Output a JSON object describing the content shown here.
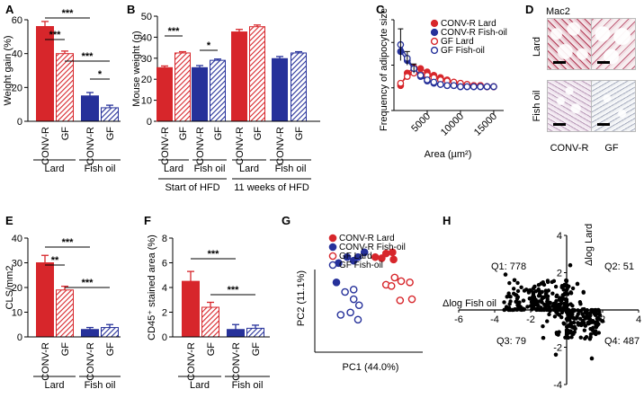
{
  "colors": {
    "red": "#d7262b",
    "blue": "#26319a",
    "black": "#000000"
  },
  "legend_lines": {
    "p2": [
      "CONV-R Lard",
      "CONV-R Fish-oil",
      "GF Lard",
      "GF Fish-oil"
    ]
  },
  "chart_data": [
    {
      "panel": "A",
      "type": "bar",
      "ylabel": "Weight gain (%)",
      "ylim": [
        0,
        60
      ],
      "yticks": [
        0,
        20,
        40,
        60
      ],
      "categories": [
        "CONV-R",
        "GF",
        "CONV-R",
        "GF"
      ],
      "groups": [
        "Lard",
        "Fish oil"
      ],
      "values": [
        56,
        40,
        15,
        8
      ],
      "errors": [
        3,
        1.5,
        2,
        1.5
      ],
      "significance": [
        "***",
        "***",
        "***",
        "*"
      ]
    },
    {
      "panel": "B",
      "type": "bar",
      "ylabel": "Mouse weight (g)",
      "ylim": [
        0,
        50
      ],
      "yticks": [
        0,
        10,
        20,
        30,
        40,
        50
      ],
      "categories": [
        "CONV-R",
        "GF",
        "CONV-R",
        "GF",
        "CONV-R",
        "GF",
        "CONV-R",
        "GF"
      ],
      "groups": [
        "Lard",
        "Fish oil",
        "Lard",
        "Fish oil"
      ],
      "timepoints": [
        "Start of HFD",
        "11 weeks of HFD"
      ],
      "values": [
        25.5,
        32.5,
        25.5,
        29,
        42.5,
        45,
        29.8,
        32.5
      ],
      "errors": [
        0.8,
        0.6,
        1,
        0.6,
        1.2,
        0.8,
        1,
        0.6
      ],
      "significance": [
        "***",
        "*"
      ]
    },
    {
      "panel": "C",
      "type": "line",
      "xlabel": "Area (µm²)",
      "ylabel": "Frequency of adipocyte size",
      "xticks": [
        5000,
        10000,
        15000
      ],
      "xlim": [
        0,
        16500
      ],
      "ylim": [
        0,
        0.8
      ],
      "yticks": [
        0,
        0.2,
        0.4,
        0.6,
        0.8
      ],
      "series": [
        {
          "name": "CONV-R Lard",
          "x": [
            1000,
            2000,
            3000,
            4000,
            5000,
            6000,
            7000,
            8000,
            9000,
            10000,
            11000,
            12000,
            13000,
            14000,
            15000
          ],
          "y": [
            0.22,
            0.33,
            0.38,
            0.37,
            0.34,
            0.31,
            0.29,
            0.27,
            0.25,
            0.24,
            0.23,
            0.22,
            0.22,
            0.21,
            0.21
          ]
        },
        {
          "name": "CONV-R Fish-oil",
          "x": [
            1000,
            2000,
            3000,
            4000,
            5000,
            6000,
            7000,
            8000,
            9000,
            10000,
            11000,
            12000,
            13000,
            14000,
            15000
          ],
          "y": [
            0.52,
            0.44,
            0.36,
            0.3,
            0.26,
            0.24,
            0.23,
            0.22,
            0.22,
            0.21,
            0.21,
            0.21,
            0.21,
            0.21,
            0.21
          ]
        },
        {
          "name": "GF Lard",
          "x": [
            1000,
            2000,
            3000,
            4000,
            5000,
            6000,
            7000,
            8000,
            9000,
            10000,
            11000,
            12000,
            13000,
            14000,
            15000
          ],
          "y": [
            0.24,
            0.3,
            0.33,
            0.32,
            0.31,
            0.29,
            0.27,
            0.26,
            0.25,
            0.24,
            0.23,
            0.22,
            0.22,
            0.21,
            0.21
          ]
        },
        {
          "name": "GF Fish-oil",
          "x": [
            1000,
            2000,
            3000,
            4000,
            5000,
            6000,
            7000,
            8000,
            9000,
            10000,
            11000,
            12000,
            13000,
            14000,
            15000
          ],
          "y": [
            0.58,
            0.46,
            0.37,
            0.31,
            0.27,
            0.25,
            0.23,
            0.22,
            0.22,
            0.21,
            0.21,
            0.21,
            0.21,
            0.21,
            0.21
          ]
        }
      ]
    },
    {
      "panel": "D",
      "type": "image_grid",
      "title": "Mac2",
      "rows": [
        "Lard",
        "Fish oil"
      ],
      "columns": [
        "CONV-R",
        "GF"
      ]
    },
    {
      "panel": "E",
      "type": "bar",
      "ylabel": "CLS/mm2",
      "ylim": [
        0,
        40
      ],
      "yticks": [
        0,
        10,
        20,
        30,
        40
      ],
      "categories": [
        "CONV-R",
        "GF",
        "CONV-R",
        "GF"
      ],
      "groups": [
        "Lard",
        "Fish oil"
      ],
      "values": [
        30,
        19,
        3,
        3.8
      ],
      "errors": [
        3,
        1.5,
        0.8,
        1.2
      ],
      "significance": [
        "***",
        "**",
        "***"
      ]
    },
    {
      "panel": "F",
      "type": "bar",
      "ylabel": "CD45⁺ stained area (%)",
      "ylim": [
        0,
        8
      ],
      "yticks": [
        0,
        2,
        4,
        6,
        8
      ],
      "categories": [
        "CONV-R",
        "GF",
        "CONV-R",
        "GF"
      ],
      "groups": [
        "Lard",
        "Fish oil"
      ],
      "values": [
        4.5,
        2.4,
        0.6,
        0.7
      ],
      "errors": [
        0.8,
        0.4,
        0.4,
        0.25
      ],
      "significance": [
        "***",
        "***"
      ]
    },
    {
      "panel": "G",
      "type": "scatter",
      "xlabel": "PC1 (44.0%)",
      "ylabel": "PC2 (11.1%)",
      "series": [
        {
          "name": "CONV-R Lard",
          "x": [
            0.62,
            0.66,
            0.72,
            0.73,
            0.56
          ],
          "y": [
            0.78,
            0.82,
            0.83,
            0.77,
            0.79
          ]
        },
        {
          "name": "CONV-R Fish-oil",
          "x": [
            0.22,
            0.3,
            0.36,
            0.4,
            0.46,
            0.2
          ],
          "y": [
            0.74,
            0.79,
            0.76,
            0.79,
            0.83,
            0.58
          ]
        },
        {
          "name": "GF Lard",
          "x": [
            0.66,
            0.74,
            0.8,
            0.88,
            0.9,
            0.79,
            0.71
          ],
          "y": [
            0.56,
            0.62,
            0.59,
            0.58,
            0.44,
            0.43,
            0.55
          ]
        },
        {
          "name": "GF Fish-oil",
          "x": [
            0.28,
            0.36,
            0.41,
            0.33,
            0.24,
            0.4,
            0.36
          ],
          "y": [
            0.5,
            0.52,
            0.39,
            0.33,
            0.31,
            0.27,
            0.44
          ]
        }
      ]
    },
    {
      "panel": "H",
      "type": "scatter",
      "xlabel": "Δlog Fish oil",
      "ylabel": "Δlog Lard",
      "xlim": [
        -6,
        4
      ],
      "ylim": [
        -4,
        4
      ],
      "xticks": [
        -6,
        -4,
        -2,
        2,
        4
      ],
      "yticks": [
        -4,
        -2,
        2,
        4
      ],
      "quadrants": [
        {
          "label": "Q1: 778"
        },
        {
          "label": "Q2: 51"
        },
        {
          "label": "Q3: 79"
        },
        {
          "label": "Q4: 487"
        }
      ]
    }
  ]
}
